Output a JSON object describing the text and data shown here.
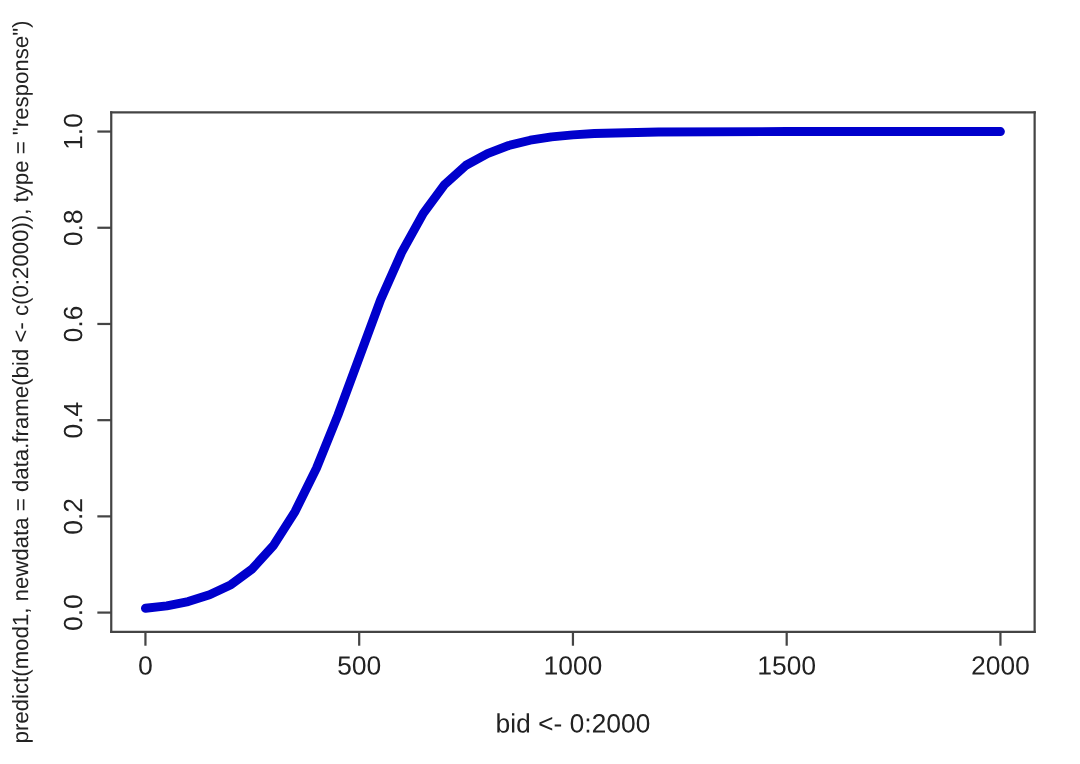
{
  "chart_data": {
    "type": "line",
    "xlabel": "bid <- 0:2000",
    "ylabel": "predict(mod1, newdata = data.frame(bid <- c(0:2000)), type = \"response\")",
    "xlim": [
      -80,
      2080
    ],
    "ylim": [
      -0.04,
      1.04
    ],
    "xticks": [
      0,
      500,
      1000,
      1500,
      2000
    ],
    "yticks": [
      {
        "value": 0,
        "label": "0.0"
      },
      {
        "value": 0.2,
        "label": "0.2"
      },
      {
        "value": 0.4,
        "label": "0.4"
      },
      {
        "value": 0.6,
        "label": "0.6"
      },
      {
        "value": 0.8,
        "label": "0.8"
      },
      {
        "value": 1,
        "label": "1.0"
      }
    ],
    "grid": false,
    "series": [
      {
        "color": "#0000cc",
        "x": [
          0,
          50,
          100,
          150,
          200,
          250,
          300,
          350,
          400,
          450,
          500,
          550,
          600,
          650,
          700,
          750,
          800,
          850,
          900,
          950,
          1000,
          1050,
          1100,
          1200,
          1500,
          2000
        ],
        "values": [
          0.009,
          0.014,
          0.023,
          0.037,
          0.058,
          0.091,
          0.14,
          0.21,
          0.3,
          0.41,
          0.53,
          0.65,
          0.75,
          0.83,
          0.89,
          0.93,
          0.954,
          0.971,
          0.982,
          0.989,
          0.993,
          0.996,
          0.997,
          0.999,
          1.0,
          1.0
        ]
      }
    ]
  }
}
